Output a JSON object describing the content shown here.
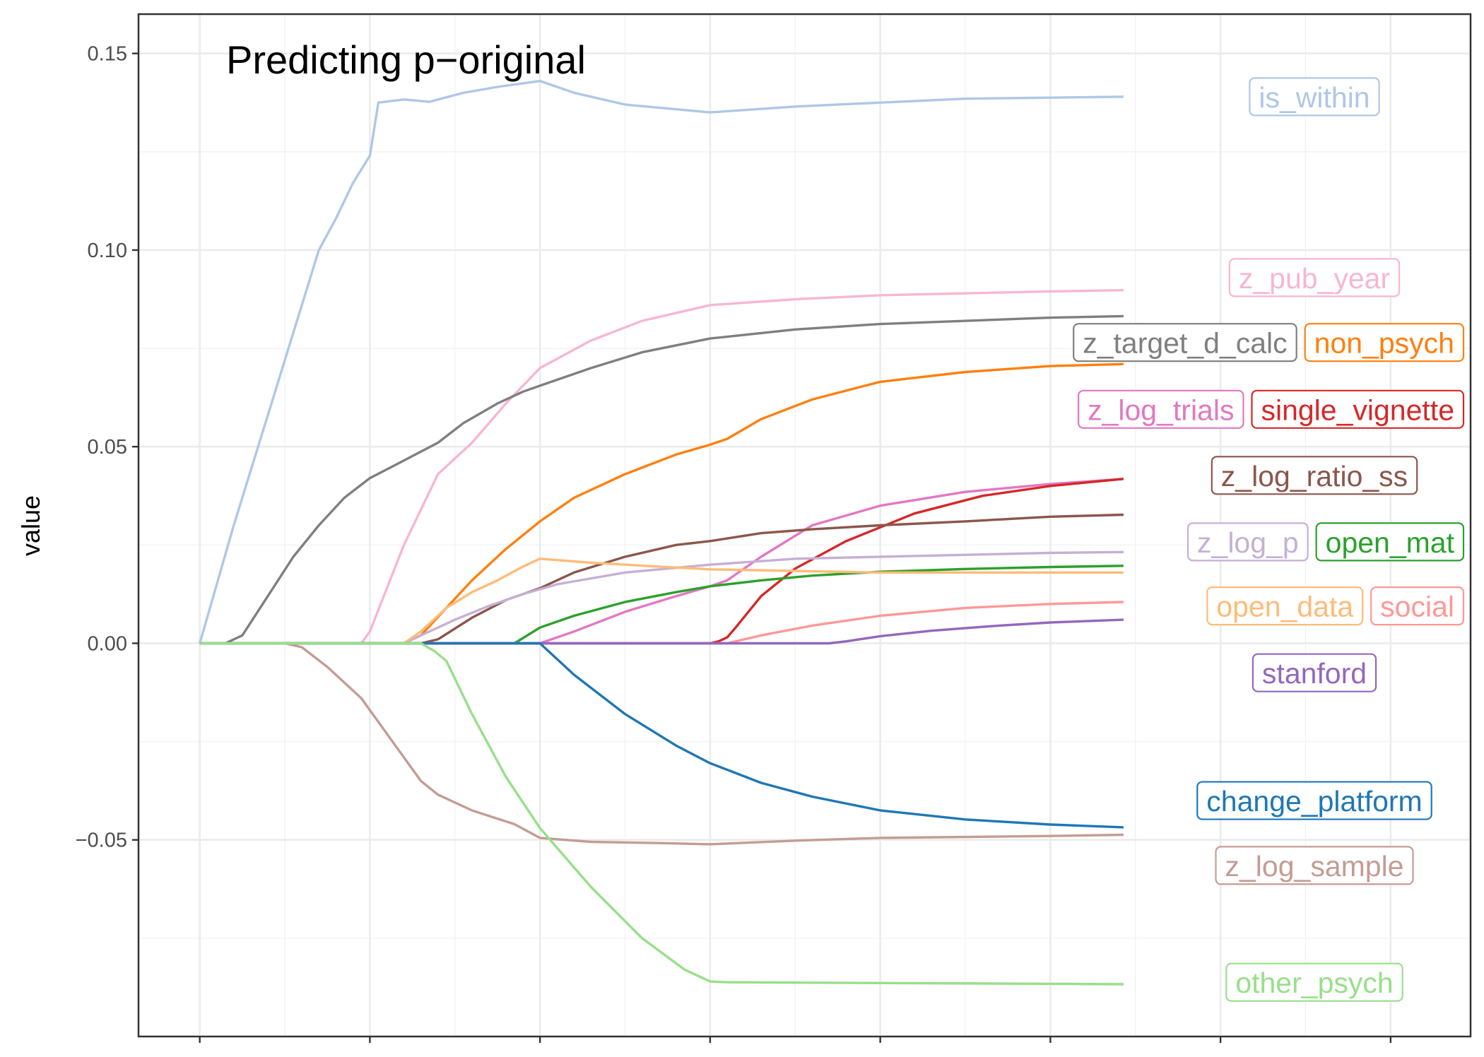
{
  "chart_data": {
    "type": "line",
    "title": "Predicting p−original",
    "xlabel": "",
    "ylabel": "value",
    "xlim": [
      -0.36,
      7.47
    ],
    "ylim": [
      -0.1,
      0.16
    ],
    "y_ticks": [
      -0.05,
      0.0,
      0.05,
      0.1,
      0.15
    ],
    "y_tick_labels": [
      "−0.05",
      "0.00",
      "0.05",
      "0.10",
      "0.15"
    ],
    "x_gridlines_major": [
      0,
      1,
      2,
      3,
      4,
      5,
      6,
      7
    ],
    "x_tick_labels_shown": false,
    "grid": true,
    "legend": "direct labels at right of each line",
    "series": [
      {
        "name": "is_within",
        "color": "#aec7e8",
        "x": [
          0,
          0.2,
          0.4,
          0.55,
          0.7,
          0.8,
          0.9,
          1.0,
          1.05,
          1.2,
          1.35,
          1.55,
          1.75,
          2.0,
          2.2,
          2.5,
          3.0,
          3.5,
          4.5,
          5.43
        ],
        "y": [
          0,
          0.03,
          0.058,
          0.079,
          0.1,
          0.108,
          0.117,
          0.124,
          0.1375,
          0.1383,
          0.1377,
          0.14,
          0.1415,
          0.143,
          0.14,
          0.137,
          0.135,
          0.1365,
          0.1385,
          0.139
        ],
        "label_y": 0.139
      },
      {
        "name": "z_pub_year",
        "color": "#f7b6d2",
        "x": [
          0,
          0.95,
          1.0,
          1.2,
          1.4,
          1.6,
          1.8,
          2.0,
          2.3,
          2.6,
          3.0,
          3.5,
          4.0,
          5.0,
          5.43
        ],
        "y": [
          0,
          0,
          0.003,
          0.025,
          0.043,
          0.051,
          0.061,
          0.07,
          0.077,
          0.082,
          0.086,
          0.0875,
          0.0885,
          0.0895,
          0.0898
        ],
        "label_y": 0.093
      },
      {
        "name": "z_target_d_calc",
        "color": "#7f7f7f",
        "x": [
          0,
          0.15,
          0.25,
          0.4,
          0.55,
          0.7,
          0.85,
          1.0,
          1.2,
          1.4,
          1.55,
          1.75,
          1.9,
          2.0,
          2.3,
          2.6,
          3.0,
          3.5,
          4.0,
          5.0,
          5.43
        ],
        "y": [
          0,
          0,
          0.002,
          0.012,
          0.022,
          0.03,
          0.037,
          0.042,
          0.0465,
          0.051,
          0.056,
          0.061,
          0.064,
          0.0655,
          0.07,
          0.074,
          0.0775,
          0.0798,
          0.0812,
          0.0828,
          0.0832
        ],
        "label_y": 0.0765
      },
      {
        "name": "non_psych",
        "color": "#ff7f0e",
        "x": [
          0,
          1.2,
          1.3,
          1.45,
          1.6,
          1.8,
          2.0,
          2.2,
          2.5,
          2.8,
          3.0,
          3.1,
          3.3,
          3.6,
          4.0,
          4.5,
          5.0,
          5.43
        ],
        "y": [
          0,
          0,
          0.002,
          0.009,
          0.016,
          0.024,
          0.031,
          0.037,
          0.043,
          0.048,
          0.0505,
          0.052,
          0.057,
          0.062,
          0.0665,
          0.069,
          0.0705,
          0.071
        ],
        "label_y": 0.0765
      },
      {
        "name": "z_log_trials",
        "color": "#e377c2",
        "x": [
          0,
          2.0,
          2.2,
          2.5,
          2.8,
          3.0,
          3.1,
          3.3,
          3.6,
          4.0,
          4.5,
          5.0,
          5.43
        ],
        "y": [
          0,
          0,
          0.003,
          0.008,
          0.012,
          0.0145,
          0.016,
          0.022,
          0.03,
          0.035,
          0.0385,
          0.0405,
          0.0418
        ],
        "label_y": 0.0595
      },
      {
        "name": "single_vignette",
        "color": "#d62728",
        "x": [
          0,
          3.0,
          3.05,
          3.1,
          3.15,
          3.3,
          3.5,
          3.8,
          4.2,
          4.6,
          5.0,
          5.43
        ],
        "y": [
          0,
          0,
          0.0005,
          0.0015,
          0.004,
          0.012,
          0.019,
          0.026,
          0.033,
          0.0375,
          0.04,
          0.0418
        ],
        "label_y": 0.0595
      },
      {
        "name": "z_log_ratio_ss",
        "color": "#8c564b",
        "x": [
          0,
          1.3,
          1.4,
          1.6,
          1.8,
          2.0,
          2.2,
          2.5,
          2.8,
          3.0,
          3.3,
          3.6,
          4.0,
          4.5,
          5.0,
          5.43
        ],
        "y": [
          0,
          0,
          0.001,
          0.0065,
          0.011,
          0.014,
          0.018,
          0.022,
          0.025,
          0.026,
          0.028,
          0.029,
          0.03,
          0.031,
          0.0322,
          0.0327
        ],
        "label_y": 0.0427
      },
      {
        "name": "z_log_p",
        "color": "#c5b0d5",
        "x": [
          0,
          1.2,
          1.3,
          1.5,
          1.7,
          1.9,
          2.1,
          2.5,
          3.0,
          3.5,
          4.0,
          5.0,
          5.43
        ],
        "y": [
          0,
          0,
          0.002,
          0.006,
          0.0095,
          0.0125,
          0.015,
          0.018,
          0.02,
          0.0215,
          0.022,
          0.023,
          0.0232
        ],
        "label_y": 0.0258
      },
      {
        "name": "open_mat",
        "color": "#2ca02c",
        "x": [
          0,
          1.85,
          2.0,
          2.2,
          2.5,
          2.8,
          3.0,
          3.3,
          3.6,
          4.0,
          4.5,
          5.0,
          5.43
        ],
        "y": [
          0,
          0,
          0.004,
          0.007,
          0.0105,
          0.013,
          0.0145,
          0.016,
          0.0172,
          0.0182,
          0.0189,
          0.0194,
          0.0197
        ],
        "label_y": 0.0258
      },
      {
        "name": "open_data",
        "color": "#ffbb78",
        "x": [
          0,
          1.2,
          1.3,
          1.45,
          1.6,
          1.75,
          1.9,
          2.0,
          2.3,
          2.7,
          3.0,
          3.5,
          4.0,
          5.0,
          5.43
        ],
        "y": [
          0,
          0,
          0.003,
          0.009,
          0.013,
          0.016,
          0.0195,
          0.0215,
          0.0205,
          0.0195,
          0.0188,
          0.0184,
          0.018,
          0.018,
          0.018
        ],
        "label_y": 0.0095
      },
      {
        "name": "social",
        "color": "#ff9896",
        "x": [
          0,
          3.1,
          3.3,
          3.6,
          4.0,
          4.5,
          5.0,
          5.43
        ],
        "y": [
          0,
          0,
          0.002,
          0.0045,
          0.007,
          0.009,
          0.01,
          0.0105
        ],
        "label_y": 0.0095
      },
      {
        "name": "stanford",
        "color": "#9467bd",
        "x": [
          0,
          3.7,
          3.8,
          4.0,
          4.3,
          4.7,
          5.0,
          5.43
        ],
        "y": [
          0,
          0,
          0.0005,
          0.0018,
          0.0032,
          0.0045,
          0.0053,
          0.006
        ],
        "label_y": -0.0075
      },
      {
        "name": "change_platform",
        "color": "#1f77b4",
        "x": [
          0,
          2.0,
          2.2,
          2.5,
          2.8,
          3.0,
          3.3,
          3.6,
          4.0,
          4.5,
          5.0,
          5.43
        ],
        "y": [
          0,
          0,
          -0.008,
          -0.018,
          -0.026,
          -0.0305,
          -0.0355,
          -0.039,
          -0.0425,
          -0.0448,
          -0.0461,
          -0.0468
        ],
        "label_y": -0.04
      },
      {
        "name": "z_log_sample",
        "color": "#c49c94",
        "x": [
          0,
          0.5,
          0.6,
          0.75,
          0.95,
          1.15,
          1.3,
          1.4,
          1.6,
          1.85,
          2.0,
          2.3,
          2.7,
          3.0,
          3.5,
          4.0,
          5.0,
          5.43
        ],
        "y": [
          0,
          0,
          -0.001,
          -0.006,
          -0.014,
          -0.026,
          -0.035,
          -0.0385,
          -0.0425,
          -0.046,
          -0.0495,
          -0.0505,
          -0.0508,
          -0.0511,
          -0.0502,
          -0.0495,
          -0.049,
          -0.0487
        ],
        "label_y": -0.0565
      },
      {
        "name": "other_psych",
        "color": "#98df8a",
        "x": [
          0,
          1.3,
          1.38,
          1.45,
          1.6,
          1.8,
          2.0,
          2.3,
          2.6,
          2.85,
          3.0,
          3.1,
          4.0,
          5.0,
          5.43
        ],
        "y": [
          0,
          0,
          -0.002,
          -0.0045,
          -0.018,
          -0.034,
          -0.047,
          -0.062,
          -0.075,
          -0.083,
          -0.086,
          -0.0862,
          -0.0864,
          -0.0866,
          -0.0867
        ],
        "label_y": -0.0862
      }
    ]
  }
}
